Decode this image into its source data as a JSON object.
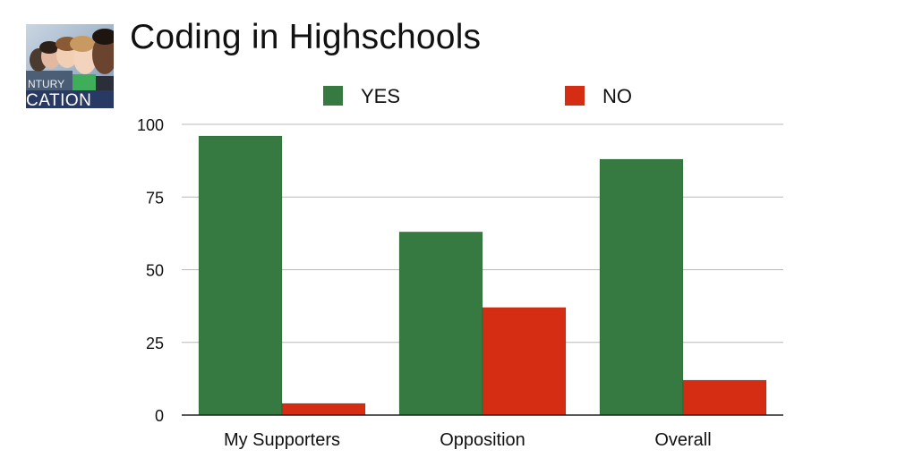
{
  "slide": {
    "title": "Coding in Highschools",
    "logo": {
      "text_top": "NTURY",
      "text_bottom": "CATION"
    }
  },
  "chart_data": {
    "type": "bar",
    "title": "",
    "xlabel": "",
    "ylabel": "",
    "categories": [
      "My Supporters",
      "Opposition",
      "Overall"
    ],
    "series": [
      {
        "name": "YES",
        "values": [
          96,
          63,
          88
        ],
        "color": "#367a41"
      },
      {
        "name": "NO",
        "values": [
          4,
          37,
          12
        ],
        "color": "#d42d14"
      }
    ],
    "ylim": [
      0,
      100
    ],
    "yticks": [
      0,
      25,
      50,
      75,
      100
    ],
    "grid": true,
    "legend": "top-center"
  }
}
